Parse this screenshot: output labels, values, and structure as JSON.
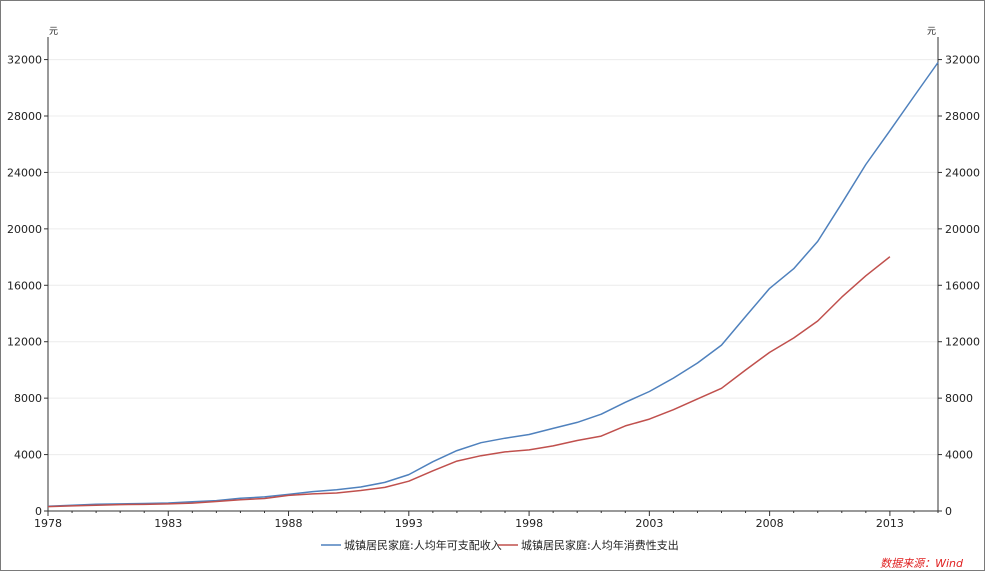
{
  "chart_data": {
    "type": "line",
    "y_unit": "元",
    "ylim": [
      0,
      33600
    ],
    "y_ticks": [
      0,
      4000,
      8000,
      12000,
      16000,
      20000,
      24000,
      28000,
      32000
    ],
    "xlim": [
      1978,
      2015
    ],
    "x_ticks": [
      1978,
      1983,
      1988,
      1993,
      1998,
      2003,
      2008,
      2013
    ],
    "grid": "horizontal",
    "legend_position": "bottom-center",
    "source": "数据来源：Wind",
    "series": [
      {
        "name": "城镇居民家庭:人均年可支配收入",
        "color": "#4f81bd",
        "x": [
          1978,
          1979,
          1980,
          1981,
          1982,
          1983,
          1984,
          1985,
          1986,
          1987,
          1988,
          1989,
          1990,
          1991,
          1992,
          1993,
          1994,
          1995,
          1996,
          1997,
          1998,
          1999,
          2000,
          2001,
          2002,
          2003,
          2004,
          2005,
          2006,
          2007,
          2008,
          2009,
          2010,
          2011,
          2012,
          2013,
          2014,
          2015
        ],
        "values": [
          343,
          405,
          478,
          500,
          535,
          565,
          652,
          739,
          900,
          1002,
          1180,
          1374,
          1510,
          1700,
          2027,
          2577,
          3496,
          4283,
          4839,
          5160,
          5425,
          5854,
          6280,
          6860,
          7703,
          8472,
          9422,
          10493,
          11759,
          13786,
          15781,
          17175,
          19109,
          21810,
          24565,
          26955,
          29381,
          31790
        ]
      },
      {
        "name": "城镇居民家庭:人均年消费性支出",
        "color": "#c0504d",
        "x": [
          1978,
          1979,
          1980,
          1981,
          1982,
          1983,
          1984,
          1985,
          1986,
          1987,
          1988,
          1989,
          1990,
          1991,
          1992,
          1993,
          1994,
          1995,
          1996,
          1997,
          1998,
          1999,
          2000,
          2001,
          2002,
          2003,
          2004,
          2005,
          2006,
          2007,
          2008,
          2009,
          2010,
          2011,
          2012,
          2013
        ],
        "values": [
          311,
          361,
          412,
          457,
          471,
          506,
          559,
          673,
          799,
          884,
          1104,
          1211,
          1279,
          1454,
          1672,
          2111,
          2851,
          3538,
          3919,
          4186,
          4332,
          4616,
          4998,
          5309,
          6030,
          6511,
          7182,
          7943,
          8697,
          9997,
          11243,
          12265,
          13471,
          15161,
          16674,
          18023
        ]
      }
    ]
  }
}
